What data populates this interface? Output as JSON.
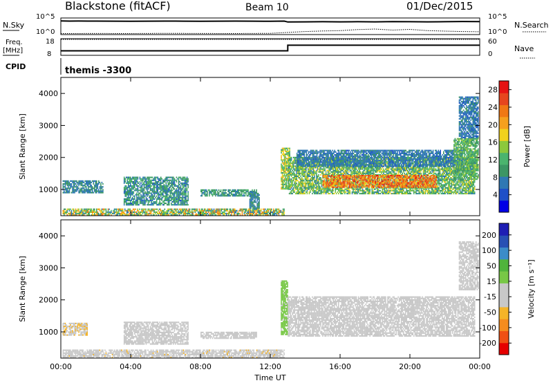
{
  "header": {
    "station": "Blackstone (fitACF)",
    "beam": "Beam 10",
    "date": "01/Dec/2015"
  },
  "params": {
    "nsky_label": "N.Sky",
    "nsky_ticks": [
      "10^5",
      "10^0"
    ],
    "nsearch_label": "N.Search",
    "nsearch_ticks": [
      "10^5",
      "10^0"
    ],
    "freq_label_top": "Freq.",
    "freq_label_unit": "[MHz]",
    "freq_ticks": [
      "18",
      "8"
    ],
    "nave_label": "Nave",
    "nave_ticks": [
      "60",
      "0"
    ],
    "cpid_label": "CPID",
    "cpid_value": "themis -3300"
  },
  "chart_data": [
    {
      "type": "line",
      "title": "",
      "ylabel": "N.Sky",
      "series": [
        {
          "name": "N.Sky",
          "x": [
            0,
            0.5,
            1,
            2,
            3,
            4,
            5,
            6,
            7,
            8,
            9,
            10,
            11,
            12,
            12.8,
            13,
            14,
            15,
            16,
            17,
            18,
            19,
            20,
            21,
            22,
            23,
            24
          ],
          "values": [
            18000,
            16000,
            17000,
            16000,
            15000,
            14000,
            15000,
            16000,
            15000,
            14000,
            15000,
            16000,
            15000,
            14000,
            16000,
            8000,
            9000,
            10000,
            9000,
            10000,
            9000,
            11000,
            10000,
            9000,
            10000,
            12000,
            11000
          ]
        },
        {
          "name": "N.Search",
          "x": [
            0,
            2,
            4,
            6,
            8,
            10,
            12,
            13,
            14,
            15,
            16,
            17,
            18,
            19,
            20,
            21,
            22,
            23,
            24
          ],
          "values": [
            1.3,
            1.4,
            1.3,
            1.5,
            1.4,
            1.3,
            1.5,
            3,
            6,
            9,
            12,
            25,
            40,
            18,
            30,
            12,
            8,
            6,
            5
          ]
        }
      ],
      "ylim": [
        1,
        100000
      ],
      "log": true
    },
    {
      "type": "line",
      "ylabel": "Freq. [MHz]",
      "series": [
        {
          "name": "Freq.",
          "x": [
            0,
            13,
            13,
            24
          ],
          "values": [
            10.5,
            10.5,
            14.2,
            14.2
          ]
        },
        {
          "name": "Nave",
          "x": [
            0,
            13,
            13,
            24
          ],
          "values": [
            18,
            18,
            18,
            18
          ]
        }
      ],
      "ylim": [
        8,
        18
      ]
    },
    {
      "type": "heatmap",
      "xlabel": "",
      "ylabel": "Slant Range [km]",
      "x_ticks": [
        "00:00",
        "04:00",
        "08:00",
        "12:00",
        "16:00",
        "20:00",
        "00:00"
      ],
      "y_ticks": [
        "1000",
        "2000",
        "3000",
        "4000"
      ],
      "xlim": [
        0,
        24
      ],
      "ylim": [
        180,
        4500
      ],
      "colorbar": {
        "label": "Power [dB]",
        "ticks": [
          "4",
          "8",
          "12",
          "16",
          "20",
          "24",
          "28"
        ],
        "range": [
          0,
          30
        ],
        "colors": [
          "#0000e6",
          "#1e50c8",
          "#2f78b4",
          "#3c9664",
          "#4bb46e",
          "#8cc83c",
          "#f0d21e",
          "#f5a01e",
          "#f07814",
          "#e6461e",
          "#e61414"
        ]
      },
      "regions": [
        {
          "t": [
            0.1,
            2.4
          ],
          "r": [
            880,
            1250
          ],
          "v": [
            6,
            10
          ]
        },
        {
          "t": [
            3.6,
            7.3
          ],
          "r": [
            500,
            1400
          ],
          "v": [
            5,
            13
          ]
        },
        {
          "t": [
            8.0,
            11.2
          ],
          "r": [
            780,
            1000
          ],
          "v": [
            7,
            12
          ]
        },
        {
          "t": [
            0.1,
            12.8
          ],
          "r": [
            180,
            380
          ],
          "v": [
            6,
            24
          ]
        },
        {
          "t": [
            10.8,
            11.4
          ],
          "r": [
            400,
            900
          ],
          "v": [
            6,
            10
          ]
        },
        {
          "t": [
            12.6,
            13.1
          ],
          "r": [
            1000,
            2300
          ],
          "v": [
            10,
            20
          ]
        },
        {
          "t": [
            13.0,
            23.7
          ],
          "r": [
            850,
            2000
          ],
          "v": [
            7,
            18
          ]
        },
        {
          "t": [
            15.0,
            21.5
          ],
          "r": [
            1050,
            1450
          ],
          "v": [
            18,
            28
          ]
        },
        {
          "t": [
            13.5,
            23.0
          ],
          "r": [
            1700,
            2200
          ],
          "v": [
            5,
            9
          ]
        },
        {
          "t": [
            22.5,
            23.9
          ],
          "r": [
            1300,
            2600
          ],
          "v": [
            8,
            16
          ]
        },
        {
          "t": [
            22.8,
            23.9
          ],
          "r": [
            2600,
            3900
          ],
          "v": [
            5,
            9
          ]
        }
      ]
    },
    {
      "type": "heatmap",
      "ylabel": "Slant Range [km]",
      "xlabel": "Time UT",
      "x_ticks": [
        "00:00",
        "04:00",
        "08:00",
        "12:00",
        "16:00",
        "20:00",
        "00:00"
      ],
      "y_ticks": [
        "1000",
        "2000",
        "3000",
        "4000"
      ],
      "xlim": [
        0,
        24
      ],
      "ylim": [
        180,
        4500
      ],
      "colorbar": {
        "label": "Velocity [m s⁻¹]",
        "ticks": [
          "200",
          "100",
          "50",
          "15",
          "-15",
          "-50",
          "-100",
          "-200"
        ],
        "range": [
          -250,
          250
        ],
        "colors": [
          "#e60000",
          "#f05014",
          "#f58c1e",
          "#f5b428",
          "#c8c8c8",
          "#c8c8c8",
          "#78c846",
          "#50b43c",
          "#3c8cc8",
          "#2850b4",
          "#1e1eb4"
        ]
      },
      "regions": [
        {
          "t": [
            0.1,
            1.5
          ],
          "r": [
            880,
            1250
          ],
          "v": [
            -80,
            -40
          ]
        },
        {
          "t": [
            3.6,
            7.3
          ],
          "r": [
            600,
            1300
          ],
          "v": [
            -10,
            10
          ]
        },
        {
          "t": [
            8.0,
            11.2
          ],
          "r": [
            780,
            1000
          ],
          "v": [
            -60,
            10
          ]
        },
        {
          "t": [
            0.1,
            12.8
          ],
          "r": [
            180,
            450
          ],
          "v": [
            -70,
            -30
          ]
        },
        {
          "t": [
            12.6,
            13.0
          ],
          "r": [
            900,
            2600
          ],
          "v": [
            20,
            60
          ]
        },
        {
          "t": [
            13.0,
            23.7
          ],
          "r": [
            850,
            2100
          ],
          "v": [
            -10,
            10
          ]
        },
        {
          "t": [
            22.8,
            23.9
          ],
          "r": [
            2300,
            3800
          ],
          "v": [
            -10,
            10
          ]
        }
      ]
    }
  ]
}
